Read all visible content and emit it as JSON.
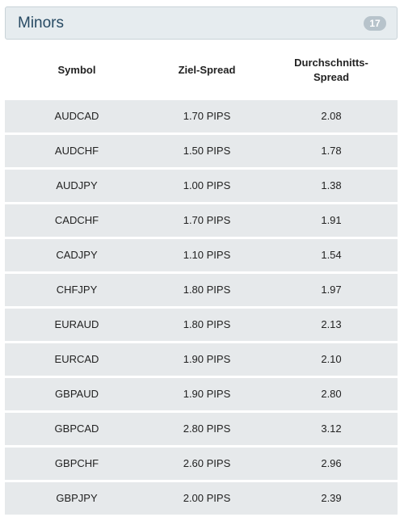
{
  "panel": {
    "title": "Minors",
    "count": "17"
  },
  "table": {
    "headers": [
      "Symbol",
      "Ziel-Spread",
      "Durchschnitts-\nSpread"
    ],
    "rows": [
      [
        "AUDCAD",
        "1.70 PIPS",
        "2.08"
      ],
      [
        "AUDCHF",
        "1.50 PIPS",
        "1.78"
      ],
      [
        "AUDJPY",
        "1.00 PIPS",
        "1.38"
      ],
      [
        "CADCHF",
        "1.70 PIPS",
        "1.91"
      ],
      [
        "CADJPY",
        "1.10 PIPS",
        "1.54"
      ],
      [
        "CHFJPY",
        "1.80 PIPS",
        "1.97"
      ],
      [
        "EURAUD",
        "1.80 PIPS",
        "2.13"
      ],
      [
        "EURCAD",
        "1.90 PIPS",
        "2.10"
      ],
      [
        "GBPAUD",
        "1.90 PIPS",
        "2.80"
      ],
      [
        "GBPCAD",
        "2.80 PIPS",
        "3.12"
      ],
      [
        "GBPCHF",
        "2.60 PIPS",
        "2.96"
      ],
      [
        "GBPJPY",
        "2.00 PIPS",
        "2.39"
      ]
    ]
  }
}
